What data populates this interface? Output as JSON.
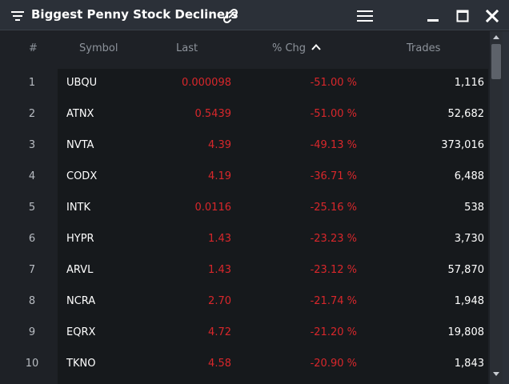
{
  "window": {
    "title": "Biggest Penny Stock Decliners"
  },
  "table": {
    "headers": {
      "num": "#",
      "symbol": "Symbol",
      "last": "Last",
      "chg": "% Chg",
      "trades": "Trades"
    },
    "sort": {
      "column": "chg",
      "direction": "ascending"
    },
    "rows": [
      {
        "num": "1",
        "symbol": "UBQU",
        "last": "0.000098",
        "chg": "-51.00 %",
        "trades": "1,116"
      },
      {
        "num": "2",
        "symbol": "ATNX",
        "last": "0.5439",
        "chg": "-51.00 %",
        "trades": "52,682"
      },
      {
        "num": "3",
        "symbol": "NVTA",
        "last": "4.39",
        "chg": "-49.13 %",
        "trades": "373,016"
      },
      {
        "num": "4",
        "symbol": "CODX",
        "last": "4.19",
        "chg": "-36.71 %",
        "trades": "6,488"
      },
      {
        "num": "5",
        "symbol": "INTK",
        "last": "0.0116",
        "chg": "-25.16 %",
        "trades": "538"
      },
      {
        "num": "6",
        "symbol": "HYPR",
        "last": "1.43",
        "chg": "-23.23 %",
        "trades": "3,730"
      },
      {
        "num": "7",
        "symbol": "ARVL",
        "last": "1.43",
        "chg": "-23.12 %",
        "trades": "57,870"
      },
      {
        "num": "8",
        "symbol": "NCRA",
        "last": "2.70",
        "chg": "-21.74 %",
        "trades": "1,948"
      },
      {
        "num": "9",
        "symbol": "EQRX",
        "last": "4.72",
        "chg": "-21.20 %",
        "trades": "19,808"
      },
      {
        "num": "10",
        "symbol": "TKNO",
        "last": "4.58",
        "chg": "-20.90 %",
        "trades": "1,843"
      }
    ]
  },
  "colors": {
    "negative": "#d9272b",
    "header_text": "#8d939b",
    "symbol_text": "#ffffff",
    "background": "#1e2126",
    "titlebar": "#2b3038"
  },
  "icons": {
    "menu": "filter-menu-icon",
    "link": "link-icon",
    "options": "hamburger-icon",
    "minimize": "minimize-icon",
    "maximize": "maximize-icon",
    "close": "close-icon",
    "sort": "chevron-up-icon"
  }
}
